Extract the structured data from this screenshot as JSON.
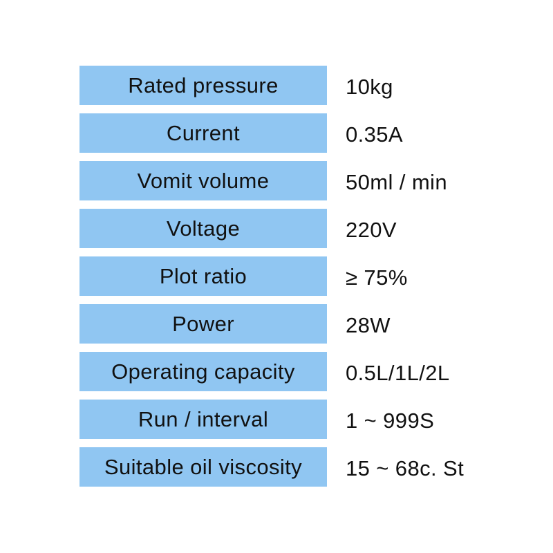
{
  "colors": {
    "box_blue": "#90c6f2",
    "text": "#111111",
    "page_background": "#ffffff"
  },
  "spec_table": {
    "rows": [
      {
        "label": "Rated pressure",
        "value": "10kg"
      },
      {
        "label": "Current",
        "value": "0.35A"
      },
      {
        "label": "Vomit volume",
        "value": "50ml / min"
      },
      {
        "label": "Voltage",
        "value": "220V"
      },
      {
        "label": "Plot ratio",
        "value": "≥ 75%"
      },
      {
        "label": "Power",
        "value": "28W"
      },
      {
        "label": "Operating capacity",
        "value": "0.5L/1L/2L"
      },
      {
        "label": "Run / interval",
        "value": "1 ~ 999S"
      },
      {
        "label": "Suitable oil viscosity",
        "value": "15 ~ 68c. St"
      }
    ]
  }
}
